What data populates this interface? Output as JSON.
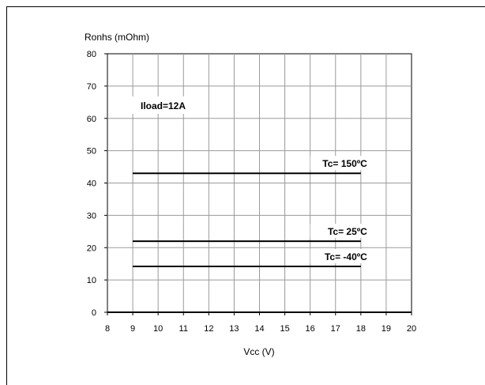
{
  "chart_data": {
    "type": "line",
    "xlabel": "Vcc (V)",
    "ylabel": "Ronhs (mOhm)",
    "xlim": [
      8,
      20
    ],
    "ylim": [
      0,
      80
    ],
    "x_ticks": [
      "8",
      "9",
      "10",
      "11",
      "12",
      "13",
      "14",
      "15",
      "16",
      "17",
      "18",
      "19",
      "20"
    ],
    "y_ticks": [
      "0",
      "10",
      "20",
      "30",
      "40",
      "50",
      "60",
      "70",
      "80"
    ],
    "grid": true,
    "annotation": "Iload=12A",
    "series": [
      {
        "name": "Tc= 150ºC",
        "x": [
          9,
          18
        ],
        "y": [
          43,
          43
        ]
      },
      {
        "name": "Tc= 25ºC",
        "x": [
          9,
          18
        ],
        "y": [
          22,
          22
        ]
      },
      {
        "name": "Tc= -40ºC",
        "x": [
          9,
          18
        ],
        "y": [
          14.2,
          14.2
        ]
      }
    ]
  }
}
